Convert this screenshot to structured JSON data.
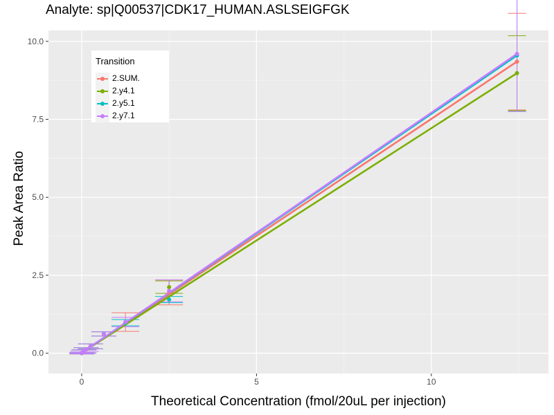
{
  "chart_data": {
    "type": "line",
    "title": "Analyte: sp|Q00537|CDK17_HUMAN.ASLSEIGFGK",
    "xlabel": "Theoretical Concentration (fmol/20uL per injection)",
    "ylabel": "Peak Area Ratio",
    "xlim": [
      -0.95,
      13.35
    ],
    "ylim": [
      -0.65,
      10.35
    ],
    "x_ticks": [
      0,
      5,
      10
    ],
    "x_tick_labels": [
      "0",
      "5",
      "10"
    ],
    "y_ticks": [
      0,
      2.5,
      5,
      7.5,
      10
    ],
    "y_tick_labels": [
      "0.0",
      "2.5",
      "5.0",
      "7.5",
      "10.0"
    ],
    "grid": true,
    "legend_title": "Transition",
    "legend_position": "top-left",
    "x": [
      0,
      0.0316,
      0.0632,
      0.1264,
      0.2528,
      0.632,
      1.25,
      2.5,
      12.45
    ],
    "series": [
      {
        "name": "2.SUM.",
        "color": "#F8766D",
        "values": [
          0.0,
          0.03,
          0.06,
          0.12,
          0.22,
          0.62,
          1.0,
          1.95,
          9.35
        ],
        "errors": [
          0.02,
          0.03,
          0.05,
          0.06,
          0.08,
          0.07,
          0.3,
          0.4,
          1.55
        ],
        "fit": [
          [
            -0.02,
            0.0
          ],
          [
            12.45,
            9.35
          ]
        ]
      },
      {
        "name": "2.y4.1",
        "color": "#7CAE00",
        "values": [
          0.0,
          0.03,
          0.06,
          0.12,
          0.22,
          0.62,
          0.98,
          2.12,
          8.98
        ],
        "errors": [
          0.02,
          0.03,
          0.05,
          0.06,
          0.08,
          0.07,
          0.1,
          0.2,
          1.2
        ],
        "fit": [
          [
            -0.02,
            0.0
          ],
          [
            12.45,
            8.98
          ]
        ]
      },
      {
        "name": "2.y5.1",
        "color": "#00BFC4",
        "values": [
          0.0,
          0.03,
          0.06,
          0.12,
          0.22,
          0.62,
          0.98,
          1.72,
          9.55
        ],
        "errors": [
          0.02,
          0.03,
          0.05,
          0.06,
          0.08,
          0.07,
          0.1,
          0.1,
          1.8
        ],
        "fit": [
          [
            -0.02,
            0.0
          ],
          [
            12.45,
            9.55
          ]
        ]
      },
      {
        "name": "2.y7.1",
        "color": "#C77CFF",
        "values": [
          0.0,
          0.03,
          0.06,
          0.12,
          0.22,
          0.62,
          1.0,
          2.0,
          9.6
        ],
        "errors": [
          0.02,
          0.03,
          0.05,
          0.06,
          0.08,
          0.07,
          0.15,
          0.35,
          1.85
        ],
        "fit": [
          [
            -0.02,
            0.0
          ],
          [
            12.45,
            9.6
          ]
        ]
      }
    ]
  }
}
